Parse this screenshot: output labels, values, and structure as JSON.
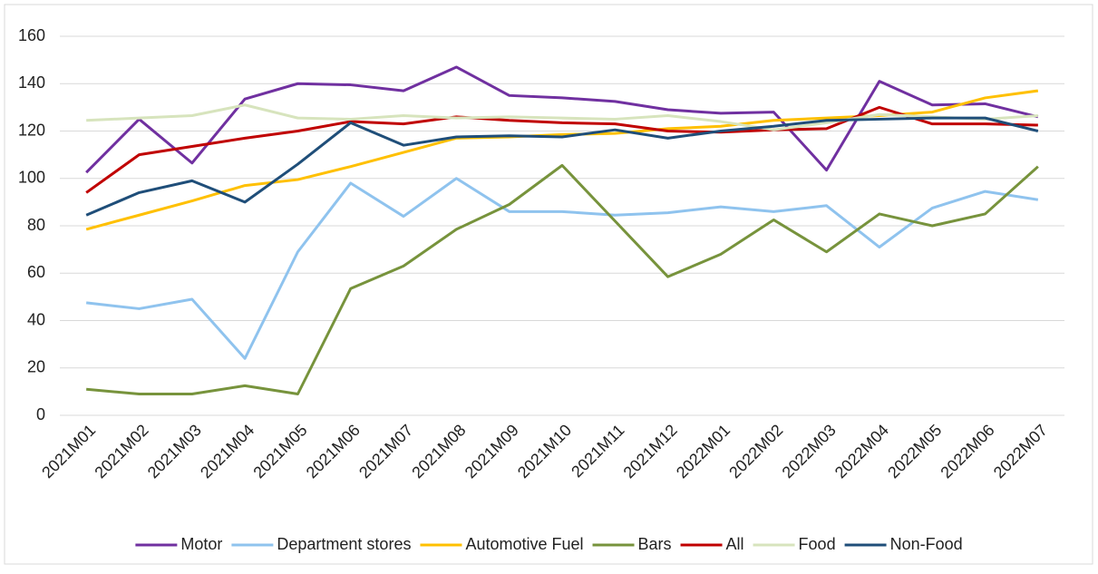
{
  "chart_data": {
    "type": "line",
    "categories": [
      "2021M01",
      "2021M02",
      "2021M03",
      "2021M04",
      "2021M05",
      "2021M06",
      "2021M07",
      "2021M08",
      "2021M09",
      "2021M10",
      "2021M11",
      "2021M12",
      "2022M01",
      "2022M02",
      "2022M03",
      "2022M04",
      "2022M05",
      "2022M06",
      "2022M07"
    ],
    "series": [
      {
        "name": "Motor",
        "color": "#7030a0",
        "values": [
          102.5,
          125,
          106.5,
          133.5,
          140,
          139.5,
          137,
          147,
          135,
          134,
          132.5,
          129,
          127.5,
          128,
          103.5,
          141,
          131,
          131.5,
          126
        ]
      },
      {
        "name": "Department stores",
        "color": "#8fc3ee",
        "values": [
          47.5,
          45,
          49,
          24,
          69,
          98,
          84,
          100,
          86,
          86,
          84.5,
          85.5,
          88,
          86,
          88.5,
          71,
          87.5,
          94.5,
          91
        ]
      },
      {
        "name": "Automotive Fuel",
        "color": "#ffc000",
        "values": [
          78.5,
          84.5,
          90.5,
          97,
          99.5,
          105,
          111,
          117,
          117.5,
          118.5,
          119,
          121,
          122,
          124.5,
          125.5,
          126.5,
          128,
          134,
          137
        ]
      },
      {
        "name": "Bars",
        "color": "#77933c",
        "values": [
          11,
          9,
          9,
          12.5,
          9,
          53.5,
          63,
          78.5,
          89,
          105.5,
          82,
          58.5,
          68,
          82.5,
          69,
          85,
          80,
          85,
          105
        ]
      },
      {
        "name": "All",
        "color": "#c00000",
        "values": [
          94,
          110,
          113.5,
          117,
          120,
          124,
          123,
          126,
          124.5,
          123.5,
          123,
          120,
          119.5,
          120.5,
          121,
          130,
          123,
          123,
          122.5
        ]
      },
      {
        "name": "Food",
        "color": "#d7e4bd",
        "values": [
          124.5,
          125.5,
          126.5,
          131,
          125.5,
          125,
          126.5,
          125.5,
          126,
          125.5,
          125,
          126.5,
          124,
          120.5,
          123.5,
          127,
          126,
          125,
          126.5
        ]
      },
      {
        "name": "Non-Food",
        "color": "#1f4e79",
        "values": [
          84.5,
          94,
          99,
          90,
          106,
          123.5,
          114,
          117.5,
          118,
          117.5,
          120.5,
          117,
          120,
          122,
          124.5,
          125,
          125.5,
          125.5,
          120
        ]
      }
    ],
    "ylim": [
      0,
      160
    ],
    "yticks": [
      0,
      20,
      40,
      60,
      80,
      100,
      120,
      140,
      160
    ],
    "grid": true,
    "legend": "bottom"
  }
}
